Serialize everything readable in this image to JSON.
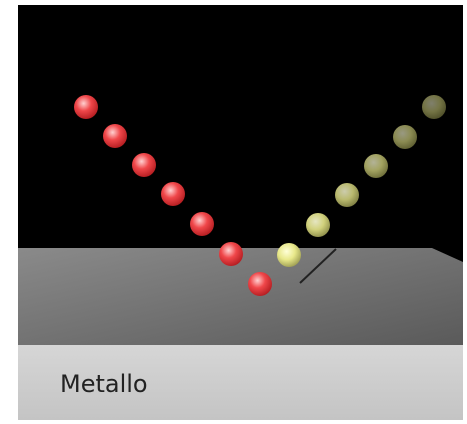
{
  "label": "Metallo"
}
